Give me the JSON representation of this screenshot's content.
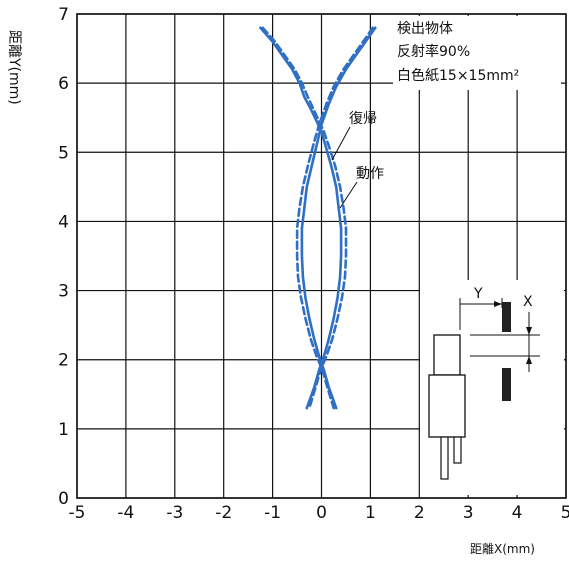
{
  "chart_data": {
    "type": "line",
    "xlabel": "距離X(mm)",
    "ylabel": "距離Y(mm)",
    "xlim": [
      -5,
      5
    ],
    "ylim": [
      0,
      7
    ],
    "x_ticks": [
      "-5",
      "-4",
      "-3",
      "-2",
      "-1",
      "0",
      "1",
      "2",
      "3",
      "4",
      "5"
    ],
    "y_ticks": [
      "0",
      "1",
      "2",
      "3",
      "4",
      "5",
      "6",
      "7"
    ],
    "grid": true,
    "annotation_lines": [
      "検出物体",
      "反射率90%",
      "白色紙15×15mm²"
    ],
    "series": [
      {
        "name": "動作",
        "style": "solid",
        "color": "#2f6fc4",
        "branches": [
          {
            "x": [
              -1.25,
              -1.0,
              -0.8,
              -0.6,
              -0.45,
              -0.35,
              -0.2,
              -0.1,
              0.0,
              0.1,
              0.2,
              0.3,
              0.35,
              0.4,
              0.4,
              0.38,
              0.33,
              0.25,
              0.15,
              0.05,
              -0.05,
              -0.15,
              -0.3
            ],
            "y": [
              6.8,
              6.6,
              6.4,
              6.2,
              6.0,
              5.8,
              5.6,
              5.45,
              5.3,
              5.05,
              4.8,
              4.5,
              4.2,
              3.9,
              3.5,
              3.2,
              2.9,
              2.6,
              2.3,
              2.05,
              1.85,
              1.6,
              1.3
            ]
          },
          {
            "x": [
              1.1,
              0.9,
              0.7,
              0.5,
              0.3,
              0.15,
              0.0,
              -0.1,
              -0.2,
              -0.3,
              -0.35,
              -0.4,
              -0.4,
              -0.38,
              -0.33,
              -0.25,
              -0.15,
              -0.05,
              0.05,
              0.15,
              0.3
            ],
            "y": [
              6.8,
              6.6,
              6.4,
              6.2,
              5.95,
              5.7,
              5.4,
              5.1,
              4.8,
              4.5,
              4.2,
              3.9,
              3.5,
              3.2,
              2.9,
              2.6,
              2.3,
              2.05,
              1.85,
              1.6,
              1.3
            ]
          }
        ]
      },
      {
        "name": "復帰",
        "style": "dashed",
        "color": "#2f6fc4",
        "branches": [
          {
            "x": [
              -1.2,
              -0.95,
              -0.75,
              -0.55,
              -0.4,
              -0.28,
              -0.15,
              -0.05,
              0.05,
              0.17,
              0.28,
              0.38,
              0.45,
              0.5,
              0.5,
              0.48,
              0.42,
              0.33,
              0.22,
              0.1,
              -0.02,
              -0.12,
              -0.25
            ],
            "y": [
              6.8,
              6.6,
              6.4,
              6.2,
              6.0,
              5.8,
              5.6,
              5.45,
              5.3,
              5.05,
              4.8,
              4.5,
              4.2,
              3.9,
              3.5,
              3.2,
              2.9,
              2.6,
              2.3,
              2.05,
              1.85,
              1.6,
              1.3
            ]
          },
          {
            "x": [
              1.05,
              0.85,
              0.65,
              0.45,
              0.25,
              0.1,
              -0.05,
              -0.17,
              -0.28,
              -0.38,
              -0.45,
              -0.5,
              -0.5,
              -0.48,
              -0.42,
              -0.33,
              -0.22,
              -0.1,
              0.02,
              0.12,
              0.25
            ],
            "y": [
              6.8,
              6.6,
              6.4,
              6.2,
              5.95,
              5.7,
              5.4,
              5.1,
              4.8,
              4.5,
              4.2,
              3.9,
              3.5,
              3.2,
              2.9,
              2.6,
              2.3,
              2.05,
              1.85,
              1.6,
              1.3
            ]
          }
        ]
      }
    ],
    "inset": {
      "y_label": "Y",
      "x_label": "X"
    }
  }
}
